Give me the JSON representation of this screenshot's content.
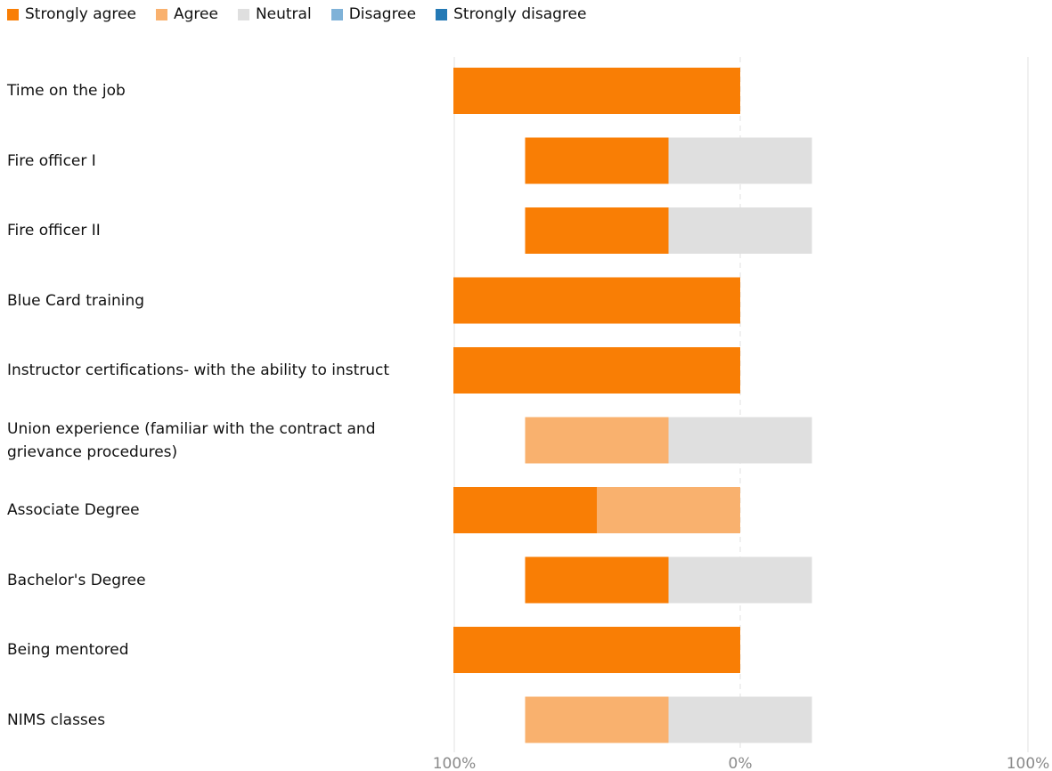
{
  "chart_data": {
    "type": "bar",
    "subtype": "diverging-stacked",
    "legend_position": "top-left",
    "grid": true,
    "xlim": [
      -100,
      100
    ],
    "x_tick_labels": [
      "100%",
      "0%",
      "100%"
    ],
    "series": [
      {
        "name": "Strongly agree",
        "color": "#F97E05"
      },
      {
        "name": "Agree",
        "color": "#F9B16E"
      },
      {
        "name": "Neutral",
        "color": "#DFDFDF"
      },
      {
        "name": "Disagree",
        "color": "#7FB2D8"
      },
      {
        "name": "Strongly disagree",
        "color": "#2479B5"
      }
    ],
    "categories": [
      "Time on the job",
      "Fire officer I",
      "Fire officer II",
      "Blue Card training",
      "Instructor certifications- with the ability to instruct",
      "Union experience (familiar with the contract and grievance procedures)",
      "Associate Degree",
      "Bachelor's Degree",
      "Being mentored",
      "NIMS classes"
    ],
    "values": [
      {
        "strongly_agree": 100,
        "agree": 0,
        "neutral": 0,
        "disagree": 0,
        "strongly_disagree": 0
      },
      {
        "strongly_agree": 50,
        "agree": 0,
        "neutral": 50,
        "disagree": 0,
        "strongly_disagree": 0
      },
      {
        "strongly_agree": 50,
        "agree": 0,
        "neutral": 50,
        "disagree": 0,
        "strongly_disagree": 0
      },
      {
        "strongly_agree": 100,
        "agree": 0,
        "neutral": 0,
        "disagree": 0,
        "strongly_disagree": 0
      },
      {
        "strongly_agree": 100,
        "agree": 0,
        "neutral": 0,
        "disagree": 0,
        "strongly_disagree": 0
      },
      {
        "strongly_agree": 0,
        "agree": 50,
        "neutral": 50,
        "disagree": 0,
        "strongly_disagree": 0
      },
      {
        "strongly_agree": 50,
        "agree": 50,
        "neutral": 0,
        "disagree": 0,
        "strongly_disagree": 0
      },
      {
        "strongly_agree": 50,
        "agree": 0,
        "neutral": 50,
        "disagree": 0,
        "strongly_disagree": 0
      },
      {
        "strongly_agree": 100,
        "agree": 0,
        "neutral": 0,
        "disagree": 0,
        "strongly_disagree": 0
      },
      {
        "strongly_agree": 0,
        "agree": 50,
        "neutral": 50,
        "disagree": 0,
        "strongly_disagree": 0
      }
    ]
  }
}
